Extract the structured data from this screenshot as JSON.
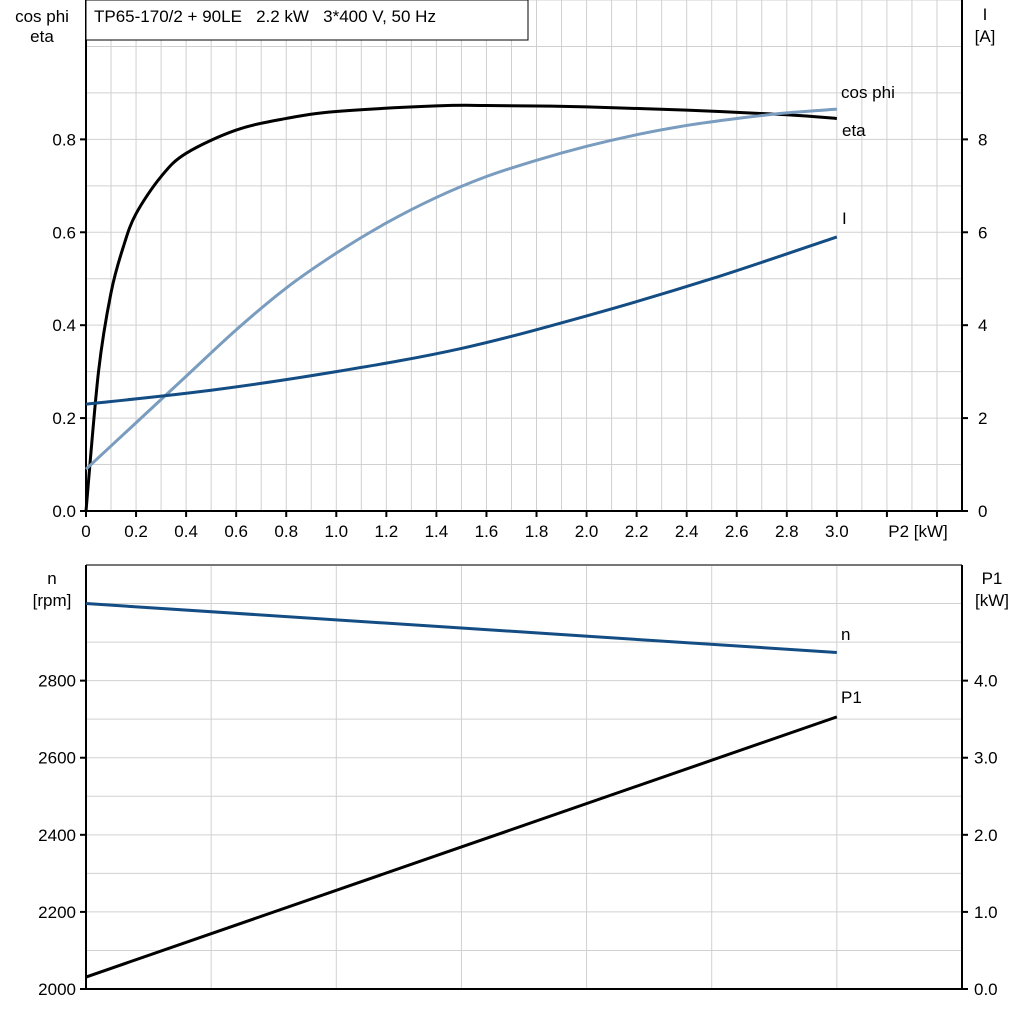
{
  "title": "TP65-170/2 + 90LE   2.2 kW   3*400 V, 50 Hz",
  "colors": {
    "eta": "#000000",
    "cos_phi": "#7a9cbf",
    "I": "#134d84",
    "n": "#134d84",
    "P1": "#000000",
    "grid": "#d0d0d0"
  },
  "chart_data": [
    {
      "type": "line",
      "xlabel": "P2 [kW]",
      "ylabel_left": [
        "cos phi",
        "eta"
      ],
      "ylabel_right": [
        "I",
        "[A]"
      ],
      "xlim": [
        0,
        3.5
      ],
      "ylim_left": [
        0,
        1.1
      ],
      "ylim_right": [
        0,
        11
      ],
      "grid": true,
      "x_ticks": [
        "0",
        "0.2",
        "0.4",
        "0.6",
        "0.8",
        "1.0",
        "1.2",
        "1.4",
        "1.6",
        "1.8",
        "2.0",
        "2.2",
        "2.4",
        "2.6",
        "2.8",
        "3.0"
      ],
      "y_ticks_left": [
        "0.0",
        "0.2",
        "0.4",
        "0.6",
        "0.8"
      ],
      "y_ticks_right": [
        "0",
        "2",
        "4",
        "6",
        "8"
      ],
      "series": [
        {
          "name": "eta",
          "axis": "left",
          "x": [
            0,
            0.05,
            0.1,
            0.15,
            0.2,
            0.3,
            0.4,
            0.6,
            0.8,
            1.0,
            1.4,
            1.6,
            2.0,
            2.4,
            2.8,
            3.0
          ],
          "y": [
            0,
            0.3,
            0.47,
            0.57,
            0.64,
            0.72,
            0.77,
            0.82,
            0.845,
            0.86,
            0.872,
            0.873,
            0.87,
            0.863,
            0.853,
            0.845
          ]
        },
        {
          "name": "cos phi",
          "axis": "left",
          "x": [
            0,
            0.2,
            0.4,
            0.6,
            0.8,
            1.0,
            1.2,
            1.4,
            1.6,
            1.8,
            2.0,
            2.2,
            2.4,
            2.6,
            2.8,
            3.0
          ],
          "y": [
            0.09,
            0.19,
            0.29,
            0.39,
            0.48,
            0.555,
            0.62,
            0.675,
            0.72,
            0.755,
            0.785,
            0.81,
            0.83,
            0.845,
            0.857,
            0.865
          ]
        },
        {
          "name": "I",
          "axis": "right",
          "x": [
            0,
            0.5,
            1.0,
            1.5,
            2.0,
            2.5,
            3.0
          ],
          "y": [
            2.3,
            2.6,
            3.0,
            3.5,
            4.2,
            5.0,
            5.9
          ]
        }
      ]
    },
    {
      "type": "line",
      "ylabel_left": [
        "n",
        "[rpm]"
      ],
      "ylabel_right": [
        "P1",
        "[kW]"
      ],
      "xlim": [
        0,
        3.5
      ],
      "ylim_left": [
        2000,
        3100
      ],
      "ylim_right": [
        0,
        5.5
      ],
      "grid": true,
      "y_ticks_left": [
        "2000",
        "2200",
        "2400",
        "2600",
        "2800"
      ],
      "y_ticks_right": [
        "0.0",
        "1.0",
        "2.0",
        "3.0",
        "4.0"
      ],
      "series": [
        {
          "name": "n",
          "axis": "left",
          "x": [
            0,
            3.0
          ],
          "y": [
            3000,
            2873
          ]
        },
        {
          "name": "P1",
          "axis": "right",
          "x": [
            0,
            3.0
          ],
          "y": [
            0.155,
            3.53
          ]
        }
      ]
    }
  ]
}
